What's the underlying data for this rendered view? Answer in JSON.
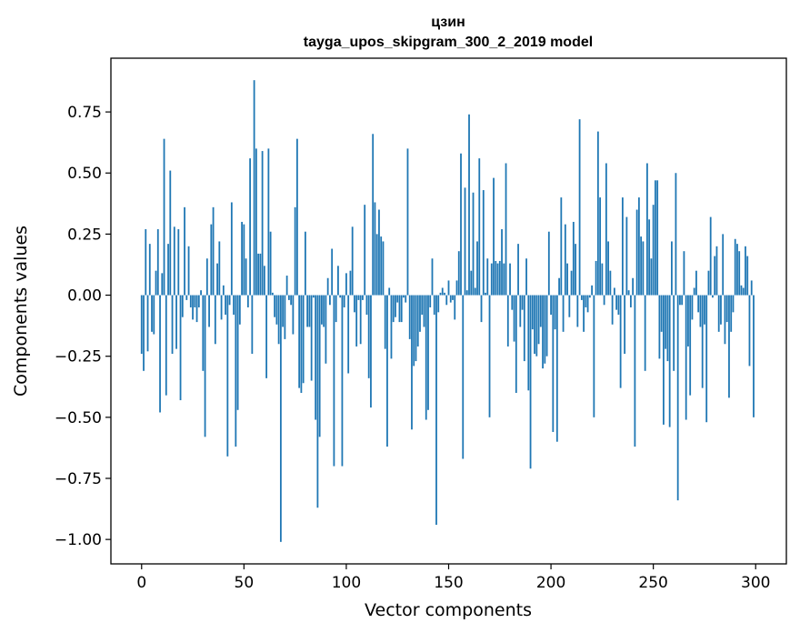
{
  "chart_data": {
    "type": "bar",
    "title_line1": "цзин",
    "title_line2": "tayga_upos_skipgram_300_2_2019 model",
    "xlabel": "Vector components",
    "ylabel": "Components values",
    "xlim": [
      -15,
      315
    ],
    "ylim": [
      -1.1,
      0.97
    ],
    "xticks": [
      0,
      50,
      100,
      150,
      200,
      250,
      300
    ],
    "xtick_labels": [
      "0",
      "50",
      "100",
      "150",
      "200",
      "250",
      "300"
    ],
    "yticks": [
      0.75,
      0.5,
      0.25,
      0.0,
      -0.25,
      -0.5,
      -0.75,
      -1.0
    ],
    "ytick_labels": [
      "0.75",
      "0.50",
      "0.25",
      "0.00",
      "−0.25",
      "−0.50",
      "−0.75",
      "−1.00"
    ],
    "grid": false,
    "bar_color": "#1f77b4",
    "values": [
      -0.24,
      -0.31,
      0.27,
      -0.23,
      0.21,
      -0.15,
      -0.16,
      0.1,
      0.27,
      -0.48,
      0.09,
      0.64,
      -0.41,
      0.21,
      0.51,
      -0.24,
      0.28,
      -0.22,
      0.27,
      -0.43,
      -0.09,
      0.36,
      -0.02,
      0.2,
      -0.05,
      -0.1,
      -0.05,
      -0.11,
      -0.05,
      0.02,
      -0.31,
      -0.58,
      0.15,
      -0.13,
      0.29,
      0.36,
      -0.2,
      0.13,
      0.22,
      -0.1,
      0.04,
      -0.08,
      -0.66,
      -0.04,
      0.38,
      -0.08,
      -0.62,
      -0.47,
      -0.12,
      0.3,
      0.29,
      0.15,
      -0.05,
      0.56,
      -0.24,
      0.88,
      0.6,
      0.17,
      0.17,
      0.59,
      0.12,
      -0.34,
      0.6,
      0.26,
      0.01,
      -0.09,
      -0.12,
      -0.2,
      -1.01,
      -0.13,
      -0.18,
      0.08,
      -0.02,
      -0.04,
      -0.16,
      0.36,
      0.64,
      -0.38,
      -0.4,
      -0.36,
      0.26,
      -0.13,
      -0.13,
      -0.35,
      -0.01,
      -0.51,
      -0.87,
      -0.58,
      -0.12,
      -0.13,
      -0.28,
      0.07,
      -0.04,
      0.19,
      -0.7,
      -0.11,
      0.12,
      -0.01,
      -0.7,
      -0.05,
      0.09,
      -0.32,
      0.1,
      0.28,
      -0.07,
      -0.21,
      -0.02,
      -0.2,
      -0.02,
      0.37,
      -0.08,
      -0.34,
      -0.46,
      0.66,
      0.38,
      0.25,
      0.35,
      0.24,
      0.22,
      -0.22,
      -0.62,
      0.03,
      -0.26,
      -0.11,
      -0.09,
      -0.03,
      -0.11,
      -0.11,
      -0.01,
      -0.03,
      0.6,
      -0.18,
      -0.55,
      -0.29,
      -0.27,
      -0.21,
      -0.15,
      -0.08,
      -0.13,
      -0.51,
      -0.47,
      -0.05,
      0.15,
      -0.08,
      -0.94,
      -0.07,
      0.01,
      0.03,
      0.01,
      -0.04,
      0.06,
      -0.03,
      -0.02,
      -0.1,
      0.06,
      0.18,
      0.58,
      -0.67,
      0.44,
      0.02,
      0.74,
      0.1,
      0.42,
      0.03,
      0.22,
      0.56,
      -0.11,
      0.43,
      0.01,
      0.15,
      -0.5,
      0.13,
      0.48,
      0.14,
      0.13,
      0.14,
      0.27,
      0.13,
      0.54,
      -0.21,
      0.13,
      -0.06,
      -0.19,
      -0.4,
      0.21,
      -0.13,
      -0.06,
      -0.27,
      0.15,
      -0.39,
      -0.71,
      -0.14,
      -0.24,
      -0.25,
      -0.2,
      -0.13,
      -0.3,
      -0.28,
      -0.25,
      0.26,
      -0.08,
      -0.56,
      -0.14,
      -0.6,
      0.07,
      0.4,
      -0.15,
      0.29,
      0.13,
      -0.09,
      0.1,
      0.3,
      0.21,
      -0.13,
      0.72,
      -0.02,
      -0.15,
      -0.05,
      -0.07,
      -0.01,
      0.04,
      -0.5,
      0.14,
      0.67,
      0.4,
      0.13,
      -0.04,
      0.54,
      0.22,
      0.1,
      -0.12,
      0.03,
      -0.06,
      -0.08,
      -0.38,
      0.4,
      -0.24,
      0.32,
      0.02,
      -0.05,
      0.07,
      -0.62,
      0.35,
      0.4,
      0.24,
      0.22,
      -0.31,
      0.54,
      0.31,
      0.15,
      0.37,
      0.47,
      0.47,
      -0.26,
      -0.15,
      -0.53,
      -0.22,
      -0.27,
      -0.54,
      0.22,
      -0.31,
      0.5,
      -0.84,
      -0.04,
      -0.04,
      0.18,
      -0.51,
      -0.21,
      -0.41,
      -0.1,
      0.03,
      0.1,
      -0.07,
      -0.13,
      -0.38,
      -0.12,
      -0.52,
      0.1,
      0.32,
      -0.01,
      0.16,
      0.2,
      -0.15,
      -0.12,
      0.25,
      -0.2,
      -0.11,
      -0.42,
      -0.15,
      -0.07,
      0.23,
      0.21,
      0.18,
      0.04,
      0.03,
      0.2,
      0.16,
      -0.29,
      0.06,
      -0.5
    ]
  }
}
